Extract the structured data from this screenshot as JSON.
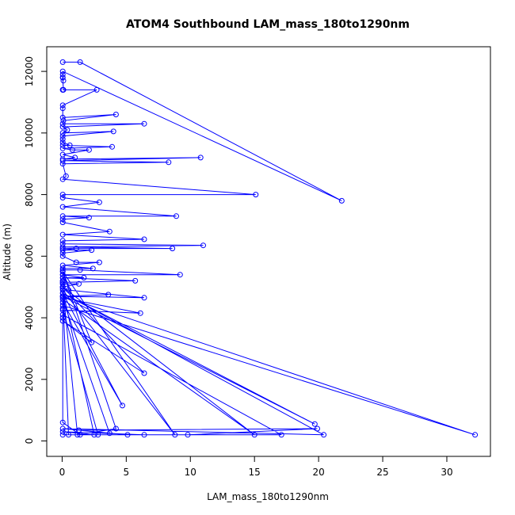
{
  "chart_data": {
    "type": "line",
    "title": "ATOM4 Southbound LAM_mass_180to1290nm",
    "xlabel": "LAM_mass_180to1290nm",
    "ylabel": "Altitude (m)",
    "xlim": [
      -1.2,
      33.4
    ],
    "ylim": [
      -500,
      12800
    ],
    "xticks": [
      0,
      5,
      10,
      15,
      20,
      25,
      30
    ],
    "yticks": [
      0,
      2000,
      4000,
      6000,
      8000,
      10000,
      12000
    ],
    "grid": false,
    "legend": "none",
    "color": "#0000ff",
    "x": [
      0.05,
      1.4,
      21.8,
      0.05,
      0.05,
      0.05,
      0.1,
      0.05,
      0.1,
      0.05,
      0.05,
      2.7,
      0.05,
      0.05,
      0.05,
      4.2,
      0.1,
      0.05,
      6.4,
      0.05,
      0.4,
      0.05,
      4.0,
      0.05,
      0.05,
      0.05,
      0.6,
      0.05,
      3.9,
      0.05,
      0.8,
      2.1,
      0.05,
      1.0,
      0.05,
      10.8,
      0.05,
      8.3,
      0.05,
      0.3,
      0.05,
      15.1,
      0.05,
      0.05,
      2.9,
      0.05,
      8.9,
      0.05,
      2.1,
      0.05,
      0.05,
      3.7,
      0.05,
      6.4,
      0.05,
      0.05,
      11.0,
      0.05,
      8.6,
      0.05,
      1.1,
      0.05,
      2.3,
      0.05,
      0.05,
      1.1,
      2.9,
      0.05,
      2.4,
      0.05,
      0.05,
      1.4,
      9.2,
      0.05,
      1.7,
      0.05,
      5.7,
      0.05,
      0.05,
      1.3,
      0.05,
      0.05,
      0.5,
      6.4,
      0.05,
      3.6,
      0.05,
      0.05,
      6.1,
      0.05,
      0.05,
      0.05,
      0.05,
      0.05,
      0.05,
      2.3,
      0.05,
      6.4,
      0.05,
      0.05,
      4.7,
      0.05,
      19.7,
      0.05,
      32.2,
      0.05,
      0.05,
      0.05,
      0.05,
      0.05,
      17.1,
      0.5,
      0.05,
      20.4,
      0.05,
      3.7,
      0.05,
      15.0,
      0.05,
      1.2,
      4.2,
      0.05,
      8.8,
      0.05,
      2.5,
      0.05,
      6.4,
      1.4,
      0.05,
      0.05,
      2.8,
      9.8,
      19.9,
      1.3,
      5.1,
      0.05
    ],
    "y": [
      12300,
      12300,
      7800,
      12000,
      11900,
      11800,
      11700,
      11800,
      11400,
      11400,
      11400,
      11400,
      10900,
      10800,
      10500,
      10600,
      10400,
      10300,
      10300,
      10200,
      10100,
      10000,
      10050,
      9900,
      9800,
      9700,
      9600,
      9600,
      9550,
      9500,
      9450,
      9450,
      9300,
      9200,
      9150,
      9200,
      9100,
      9050,
      9000,
      8600,
      8500,
      8000,
      8000,
      7900,
      7750,
      7600,
      7300,
      7300,
      7250,
      7200,
      7100,
      6800,
      6700,
      6550,
      6500,
      6400,
      6350,
      6300,
      6250,
      6250,
      6250,
      6200,
      6200,
      6100,
      6000,
      5800,
      5800,
      5700,
      5600,
      5600,
      5550,
      5550,
      5400,
      5400,
      5300,
      5300,
      5200,
      5150,
      5100,
      5100,
      5000,
      4950,
      4900,
      4650,
      4700,
      4750,
      4700,
      4650,
      4150,
      4250,
      5100,
      5150,
      5200,
      5400,
      5500,
      3200,
      3900,
      2200,
      5000,
      4500,
      1150,
      4800,
      550,
      4700,
      200,
      4400,
      4000,
      5200,
      5300,
      4100,
      200,
      200,
      4800,
      200,
      400,
      250,
      4600,
      200,
      5000,
      200,
      400,
      5500,
      200,
      4900,
      200,
      300,
      200,
      200,
      600,
      4300,
      200,
      200,
      400,
      350,
      200,
      200
    ]
  }
}
